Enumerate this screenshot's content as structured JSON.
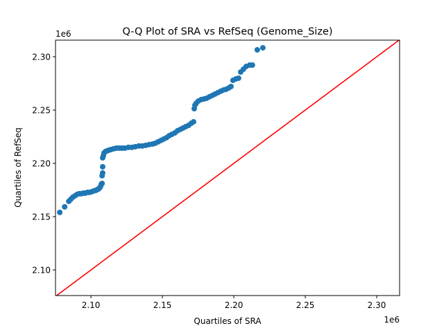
{
  "chart_data": {
    "type": "scatter",
    "title": "Q-Q Plot of SRA vs RefSeq (Genome_Size)",
    "xlabel": "Quartiles of SRA",
    "ylabel": "Quartiles of RefSeq",
    "x_offset_label": "1e6",
    "y_offset_label": "1e6",
    "xlim": [
      2075200,
      2316000
    ],
    "ylim": [
      2076000,
      2315600
    ],
    "xticks": [
      2100000,
      2150000,
      2200000,
      2250000,
      2300000
    ],
    "xtick_labels": [
      "2.10",
      "2.15",
      "2.20",
      "2.25",
      "2.30"
    ],
    "yticks": [
      2100000,
      2150000,
      2200000,
      2250000,
      2300000
    ],
    "ytick_labels": [
      "2.10",
      "2.15",
      "2.20",
      "2.25",
      "2.30"
    ],
    "grid": false,
    "point_color": "#1f77b4",
    "reference_line": {
      "type": "y=x",
      "color": "#ff0000"
    },
    "x": [
      2078200,
      2081600,
      2084500,
      2085900,
      2087400,
      2088800,
      2090300,
      2091800,
      2093200,
      2094700,
      2096100,
      2097600,
      2099000,
      2100500,
      2101900,
      2103400,
      2104400,
      2105300,
      2106300,
      2106800,
      2107300,
      2107800,
      2107800,
      2108200,
      2108200,
      2108200,
      2108700,
      2109200,
      2110200,
      2111200,
      2112600,
      2114100,
      2116000,
      2117900,
      2119900,
      2121800,
      2123800,
      2126200,
      2128600,
      2131000,
      2133500,
      2135900,
      2138300,
      2140700,
      2143200,
      2145100,
      2147000,
      2149000,
      2150900,
      2152900,
      2154800,
      2156700,
      2158700,
      2160600,
      2162600,
      2164500,
      2166400,
      2168400,
      2170300,
      2171800,
      2172300,
      2172800,
      2173700,
      2175200,
      2177100,
      2179100,
      2181000,
      2182900,
      2184900,
      2186800,
      2188800,
      2190700,
      2192600,
      2194600,
      2196500,
      2198000,
      2199400,
      2201400,
      2203300,
      2204800,
      2206700,
      2208600,
      2211100,
      2213000,
      2216400,
      2220300
    ],
    "y": [
      2154000,
      2159200,
      2164400,
      2166300,
      2168300,
      2169600,
      2170900,
      2171500,
      2171500,
      2172100,
      2172100,
      2172800,
      2172800,
      2173400,
      2174100,
      2174700,
      2175400,
      2176000,
      2177300,
      2178600,
      2180600,
      2181200,
      2188400,
      2191000,
      2196800,
      2205200,
      2207200,
      2209800,
      2211100,
      2211700,
      2212400,
      2213000,
      2213700,
      2214300,
      2214300,
      2214300,
      2214300,
      2215000,
      2215000,
      2215600,
      2216300,
      2216300,
      2216900,
      2217600,
      2218200,
      2218900,
      2220200,
      2221500,
      2222800,
      2224100,
      2226000,
      2227300,
      2228600,
      2230600,
      2231900,
      2233200,
      2234500,
      2235700,
      2237700,
      2239000,
      2251300,
      2254600,
      2256500,
      2258500,
      2259800,
      2260400,
      2261100,
      2262400,
      2263700,
      2265000,
      2266300,
      2267600,
      2268800,
      2269500,
      2270800,
      2272100,
      2277900,
      2279200,
      2279900,
      2285700,
      2288300,
      2290900,
      2292200,
      2292200,
      2306500,
      2308400
    ]
  }
}
